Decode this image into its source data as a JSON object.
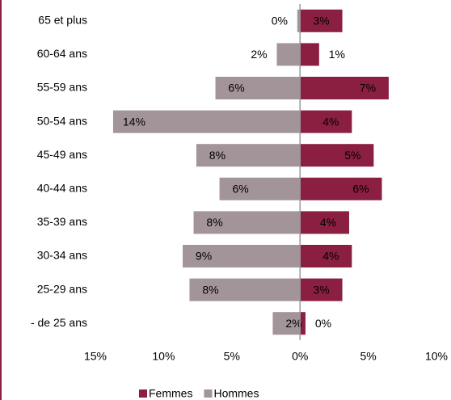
{
  "chart_data": {
    "type": "pyramid",
    "categories": [
      "65 et plus",
      "60-64 ans",
      "55-59 ans",
      "50-54 ans",
      "45-49 ans",
      "40-44 ans",
      "35-39 ans",
      "30-34 ans",
      "25-29 ans",
      "- de 25 ans"
    ],
    "series": [
      {
        "name": "Femmes",
        "color": "#8b1f41",
        "side": "right",
        "values": [
          3.1,
          1.4,
          6.5,
          3.8,
          5.4,
          6.0,
          3.6,
          3.8,
          3.1,
          0.4
        ],
        "value_labels": [
          "3%",
          "1%",
          "7%",
          "4%",
          "5%",
          "6%",
          "4%",
          "4%",
          "3%",
          "0%"
        ]
      },
      {
        "name": "Hommes",
        "color": "#a3949a",
        "side": "left",
        "values": [
          0.2,
          1.7,
          6.2,
          13.7,
          7.6,
          5.9,
          7.8,
          8.6,
          8.1,
          2.0
        ],
        "value_labels": [
          "0%",
          "2%",
          "6%",
          "14%",
          "8%",
          "6%",
          "8%",
          "9%",
          "8%",
          "2%"
        ]
      }
    ],
    "xlim": [
      -15,
      10
    ],
    "xticks": [
      {
        "value": -15,
        "label": "15%"
      },
      {
        "value": -10,
        "label": "10%"
      },
      {
        "value": -5,
        "label": "5%"
      },
      {
        "value": 0,
        "label": "0%"
      },
      {
        "value": 5,
        "label": "5%"
      },
      {
        "value": 10,
        "label": "10%"
      }
    ],
    "legend": "bottom"
  }
}
